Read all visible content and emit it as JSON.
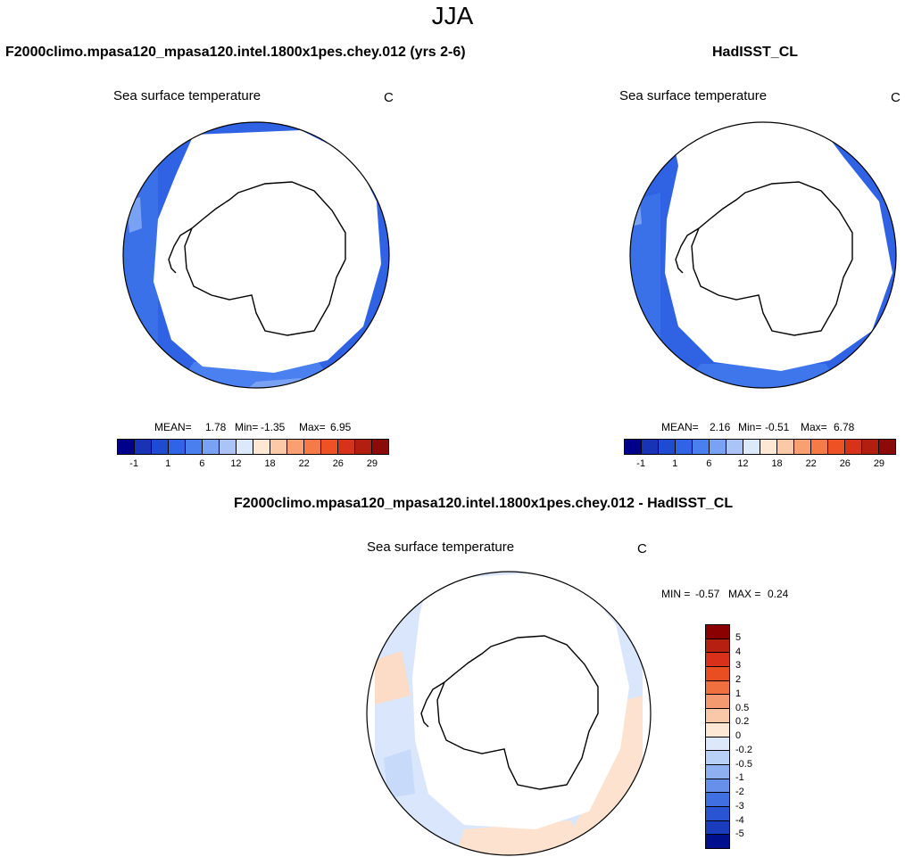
{
  "season": "JJA",
  "panels": [
    {
      "case": "F2000climo.mpasa120_mpasa120.intel.1800x1pes.chey.012 (yrs 2-6)",
      "variable": "Sea surface temperature",
      "units": "C",
      "mean_label": "MEAN=",
      "mean": "1.78",
      "min_label": "Min=",
      "min": "-1.35",
      "max_label": "Max=",
      "max": "6.95"
    },
    {
      "case": "HadISST_CL",
      "variable": "Sea surface temperature",
      "units": "C",
      "mean_label": "MEAN=",
      "mean": "2.16",
      "min_label": "Min=",
      "min": "-0.51",
      "max_label": "Max=",
      "max": "6.78"
    }
  ],
  "abs_colorbar": {
    "colors": [
      "#00008b",
      "#1833b5",
      "#1e4bd0",
      "#3064e6",
      "#4a7ff0",
      "#7aa2f4",
      "#aac4f7",
      "#dce9fb",
      "#fde8d5",
      "#fcc9a8",
      "#f9a072",
      "#f57a45",
      "#ee5224",
      "#d8321a",
      "#b21f10",
      "#8b0a0a"
    ],
    "labels": [
      "-1",
      "1",
      "6",
      "12",
      "18",
      "22",
      "26",
      "29"
    ]
  },
  "diff": {
    "title": "F2000climo.mpasa120_mpasa120.intel.1800x1pes.chey.012 - HadISST_CL",
    "variable": "Sea surface temperature",
    "units": "C",
    "min_label": "MIN =",
    "min": "-0.57",
    "max_label": "MAX =",
    "max": "0.24",
    "colors": [
      "#8b0000",
      "#b52010",
      "#d8301a",
      "#e84e22",
      "#f07040",
      "#f49a70",
      "#f9c8a8",
      "#fde8d6",
      "#dde8fb",
      "#b8cff6",
      "#8fb0f0",
      "#6690ea",
      "#3f6fe0",
      "#2a55d2",
      "#1a3cbd",
      "#000f8c"
    ],
    "labels": [
      "5",
      "4",
      "3",
      "2",
      "1",
      "0.5",
      "0.2",
      "0",
      "-0.2",
      "-0.5",
      "-1",
      "-2",
      "-3",
      "-4",
      "-5"
    ]
  }
}
